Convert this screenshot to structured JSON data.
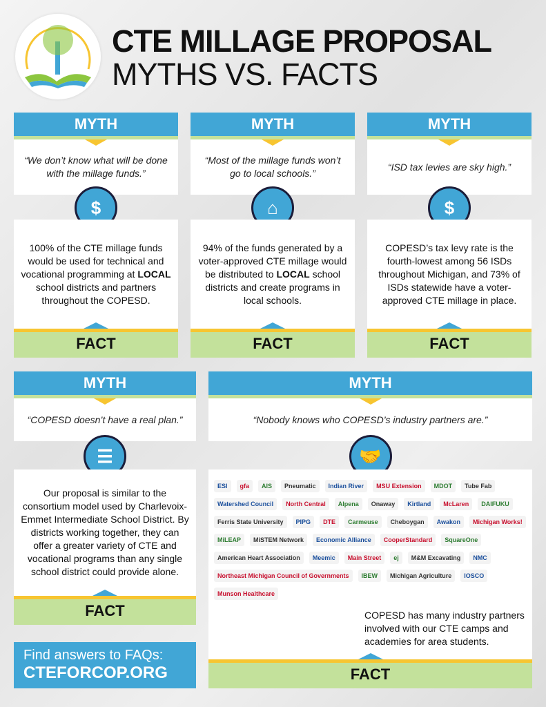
{
  "header": {
    "title": "CTE MILLAGE PROPOSAL",
    "subtitle": "MYTHS VS. FACTS"
  },
  "labels": {
    "myth": "MYTH",
    "fact": "FACT"
  },
  "cards": [
    {
      "myth": "“We don’t know what will be done with the millage funds.”",
      "icon": "money-hand-icon",
      "fact_pre": "100% of the CTE millage funds would be used for technical and vocational programming at ",
      "fact_bold": "LOCAL",
      "fact_post": " school districts and partners throughout the COPESD."
    },
    {
      "myth": "“Most of the millage funds won’t go to local schools.”",
      "icon": "school-icon",
      "fact_pre": "94% of the funds generated by a voter-approved CTE millage would be distributed to ",
      "fact_bold": "LOCAL",
      "fact_post": " school districts and create programs in local schools."
    },
    {
      "myth": "“ISD tax levies are sky high.”",
      "icon": "dollar-cycle-icon",
      "fact_pre": "COPESD’s tax levy rate is the fourth-lowest among 56 ISDs throughout Michigan, and 73% of ISDs statewide have a voter-approved CTE millage in place.",
      "fact_bold": "",
      "fact_post": ""
    },
    {
      "myth": "“COPESD doesn’t have a real plan.”",
      "icon": "clipboard-checklist-icon",
      "fact_pre": "Our proposal is similar to the consortium model used by Charlevoix-Emmet Intermediate School District. By districts working together, they can offer a greater variety of CTE and vocational programs than any single school district could provide alone.",
      "fact_bold": "",
      "fact_post": ""
    },
    {
      "myth": "“Nobody knows who COPESD’s industry partners are.”",
      "icon": "handshake-icon",
      "fact_pre": "COPESD has many industry partners involved with our CTE camps and academies for area students.",
      "fact_bold": "",
      "fact_post": ""
    }
  ],
  "partners": [
    "ESI",
    "gfa",
    "AIS",
    "Pneumatic",
    "Indian River",
    "MSU Extension",
    "MDOT",
    "Tube Fab",
    "Watershed Council",
    "North Central",
    "Alpena",
    "Onaway",
    "Kirtland",
    "McLaren",
    "DAIFUKU",
    "Ferris State University",
    "PIPG",
    "DTE",
    "Carmeuse",
    "Cheboygan",
    "Awakon",
    "Michigan Works!",
    "MiLEAP",
    "MiSTEM Network",
    "Economic Alliance",
    "CooperStandard",
    "SquareOne",
    "American Heart Association",
    "Meemic",
    "Main Street",
    "ej",
    "M&M Excavating",
    "NMC",
    "Northeast Michigan Council of Governments",
    "IBEW",
    "Michigan Agriculture",
    "IOSCO",
    "Munson Healthcare"
  ],
  "cta": {
    "line1": "Find answers to FAQs:",
    "line2": "CTEFORCOP.ORG"
  },
  "colors": {
    "blue": "#41a6d6",
    "green": "#c3e19b",
    "yellow": "#f7c531",
    "navy": "#1b1d3a"
  }
}
